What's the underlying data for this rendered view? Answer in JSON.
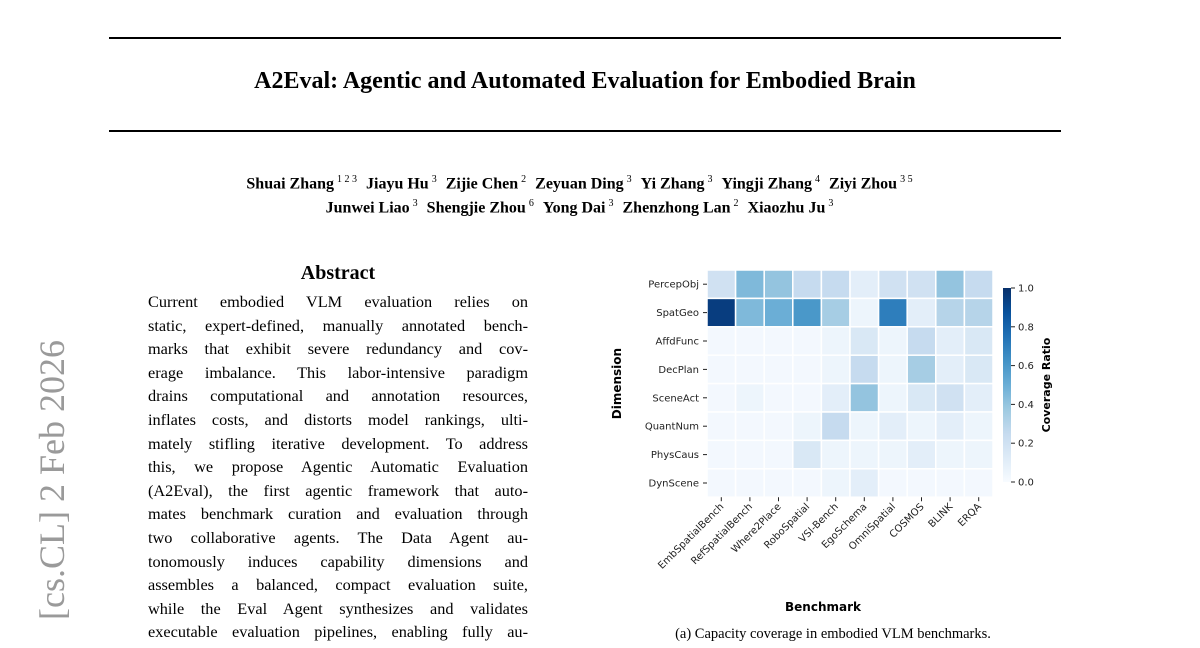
{
  "sidebar": "[cs.CL]  2 Feb 2026",
  "header": {
    "title": "A2Eval: Agentic and Automated Evaluation for Embodied Brain"
  },
  "authors": [
    [
      {
        "name": "Shuai Zhang",
        "affil": "1 2 3"
      },
      {
        "name": "Jiayu Hu",
        "affil": "3"
      },
      {
        "name": "Zijie Chen",
        "affil": "2"
      },
      {
        "name": "Zeyuan Ding",
        "affil": "3"
      },
      {
        "name": "Yi Zhang",
        "affil": "3"
      },
      {
        "name": "Yingji Zhang",
        "affil": "4"
      },
      {
        "name": "Ziyi Zhou",
        "affil": "3 5"
      }
    ],
    [
      {
        "name": "Junwei Liao",
        "affil": "3"
      },
      {
        "name": "Shengjie Zhou",
        "affil": "6"
      },
      {
        "name": "Yong Dai",
        "affil": "3"
      },
      {
        "name": "Zhenzhong Lan",
        "affil": "2"
      },
      {
        "name": "Xiaozhu Ju",
        "affil": "3"
      }
    ]
  ],
  "abstract": {
    "heading": "Abstract",
    "lines": [
      "Current embodied VLM evaluation relies on",
      "static, expert-defined, manually annotated bench-",
      "marks that exhibit severe redundancy and cov-",
      "erage imbalance. This labor-intensive paradigm",
      "drains computational and annotation resources,",
      "inflates costs, and distorts model rankings, ulti-",
      "mately stifling iterative development. To address",
      "this, we propose Agentic Automatic Evaluation",
      "(A2Eval), the first agentic framework that auto-",
      "mates benchmark curation and evaluation through",
      "two collaborative agents.  The Data Agent au-",
      "tonomously induces capability dimensions and",
      "assembles a balanced, compact evaluation suite,",
      "while the Eval Agent synthesizes and validates",
      "executable evaluation pipelines, enabling fully au-"
    ]
  },
  "chart_data": {
    "type": "heatmap",
    "caption": "(a) Capacity coverage in embodied VLM benchmarks.",
    "x_label": "Benchmark",
    "y_label": "Dimension",
    "colorbar_label": "Coverage Ratio",
    "categories": [
      "EmbSpatialBench",
      "RefSpatialBench",
      "Where2Place",
      "RoboSpatial",
      "VSI-Bench",
      "EgoSchema",
      "OmniSpatial",
      "COSMOS",
      "BLINK",
      "ERQA"
    ],
    "rows": [
      "PercepObj",
      "SpatGeo",
      "AffdFunc",
      "DecPlan",
      "SceneAct",
      "QuantNum",
      "PhysCaus",
      "DynScene"
    ],
    "values": [
      [
        0.2,
        0.45,
        0.4,
        0.25,
        0.25,
        0.1,
        0.2,
        0.2,
        0.4,
        0.25
      ],
      [
        0.95,
        0.45,
        0.5,
        0.6,
        0.35,
        0.05,
        0.7,
        0.1,
        0.3,
        0.3
      ],
      [
        0.02,
        0.02,
        0.02,
        0.02,
        0.05,
        0.15,
        0.05,
        0.25,
        0.1,
        0.15
      ],
      [
        0.02,
        0.02,
        0.02,
        0.02,
        0.05,
        0.25,
        0.05,
        0.35,
        0.1,
        0.15
      ],
      [
        0.02,
        0.05,
        0.02,
        0.02,
        0.1,
        0.4,
        0.05,
        0.15,
        0.2,
        0.1
      ],
      [
        0.02,
        0.02,
        0.02,
        0.05,
        0.25,
        0.05,
        0.1,
        0.05,
        0.1,
        0.05
      ],
      [
        0.02,
        0.02,
        0.02,
        0.15,
        0.05,
        0.05,
        0.05,
        0.1,
        0.05,
        0.05
      ],
      [
        0.02,
        0.02,
        0.02,
        0.02,
        0.05,
        0.1,
        0.02,
        0.02,
        0.02,
        0.02
      ]
    ],
    "colormap": [
      "#f7fbff",
      "#deebf7",
      "#c6dbef",
      "#9ecae1",
      "#6baed6",
      "#4292c6",
      "#2171b5",
      "#08519c",
      "#08306b"
    ],
    "clim": [
      0,
      1
    ],
    "cticks": [
      {
        "value": 0,
        "label": "0.0"
      },
      0.2,
      0.4,
      0.6,
      0.8,
      {
        "value": 1,
        "label": "1.0"
      }
    ]
  }
}
